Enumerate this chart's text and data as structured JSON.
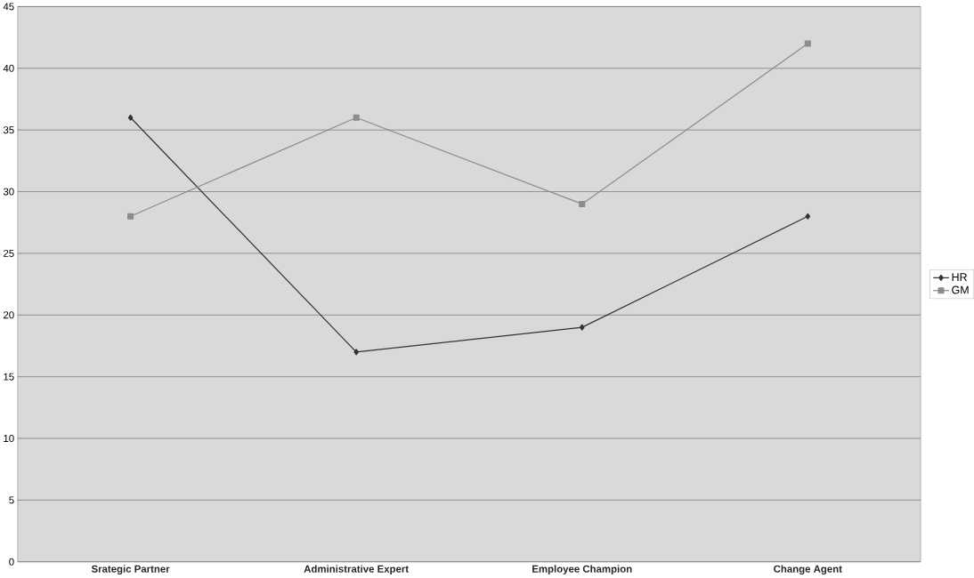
{
  "chart_data": {
    "type": "line",
    "categories": [
      "Srategic Partner",
      "Administrative Expert",
      "Employee Champion",
      "Change Agent"
    ],
    "series": [
      {
        "name": "HR",
        "color": "#333333",
        "values": [
          36,
          17,
          19,
          28
        ],
        "marker": "diamond"
      },
      {
        "name": "GM",
        "color": "#8c8c8c",
        "values": [
          28,
          36,
          29,
          42
        ],
        "marker": "square"
      }
    ],
    "ylim": [
      0,
      45
    ],
    "yticks": [
      0,
      5,
      10,
      15,
      20,
      25,
      30,
      35,
      40,
      45
    ],
    "grid": "y",
    "legend": "right",
    "line_style": "solid"
  }
}
